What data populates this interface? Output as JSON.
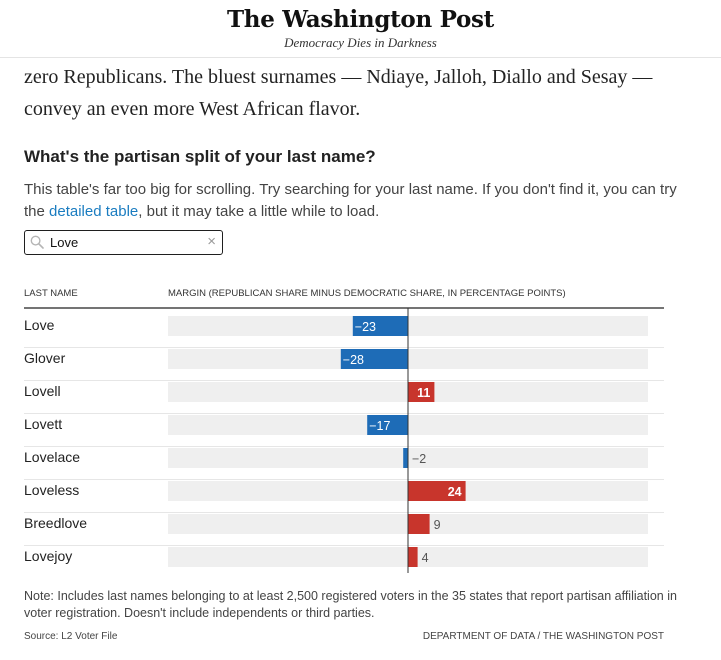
{
  "masthead": {
    "logo": "The Washington Post",
    "tagline": "Democracy Dies in Darkness"
  },
  "article": {
    "paragraph": "zero Republicans. The bluest surnames — Ndiaye, Jalloh, Diallo and Sesay — convey an even more West African flavor."
  },
  "chart_header": {
    "title": "What's the partisan split of your last name?",
    "desc_before": "This table's far too big for scrolling. Try searching for your last name. If you don't find it, you can try the ",
    "desc_link": "detailed table",
    "desc_after": ", but it may take a little while to load."
  },
  "search": {
    "value": "Love",
    "placeholder": "",
    "icon": "search-icon",
    "clear_icon": "close-icon",
    "clear_glyph": "×"
  },
  "colors": {
    "republican": "#c8352c",
    "democratic": "#1e6cb7",
    "track": "#efefef",
    "axis": "#333333"
  },
  "chart_data": {
    "type": "bar",
    "orientation": "horizontal",
    "column_headers": {
      "name": "LAST NAME",
      "margin": "MARGIN (REPUBLICAN SHARE MINUS DEMOCRATIC SHARE, IN PERCENTAGE POINTS)"
    },
    "categories": [
      "Love",
      "Glover",
      "Lovell",
      "Lovett",
      "Lovelace",
      "Loveless",
      "Breedlove",
      "Lovejoy"
    ],
    "values": [
      -23,
      -28,
      11,
      -17,
      -2,
      24,
      9,
      4
    ],
    "labels": [
      "−23",
      "−28",
      "11",
      "−17",
      "−2",
      "24",
      "9",
      "4"
    ],
    "xlim": [
      -100,
      100
    ]
  },
  "footer": {
    "note": "Note: Includes last names belonging to at least 2,500 registered voters in the 35 states that report partisan affiliation in voter registration. Doesn't include independents or third parties.",
    "source": "Source: L2 Voter File",
    "credit": "DEPARTMENT OF DATA / THE WASHINGTON POST"
  }
}
